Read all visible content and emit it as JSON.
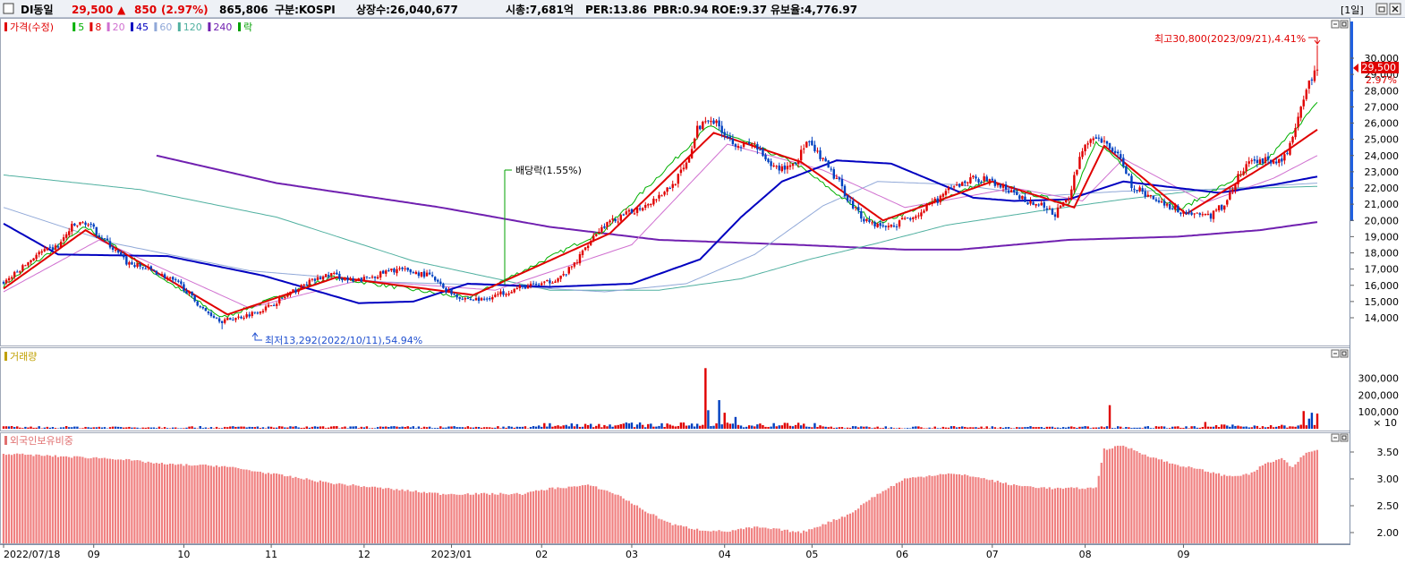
{
  "header": {
    "checkbox_icon": "checkbox-icon",
    "name": "DI동일",
    "price": "29,500",
    "change_arrow": "▲",
    "change": "850",
    "change_pct": "(2.97%)",
    "volume": "865,806",
    "market": "구분:KOSPI",
    "shares": "상장수:26,040,677",
    "market_cap": "시총:7,681억",
    "per": "PER:13.86",
    "pbr": "PBR:0.94",
    "roe": "ROE:9.37",
    "retention": "유보율:4,776.97",
    "period_button": "[1일]",
    "colors": {
      "up": "#e00000",
      "down": "#0040c0"
    }
  },
  "price_legend": {
    "items": [
      {
        "label": "가격(수정)",
        "color": "#e00000"
      },
      {
        "label": "5",
        "color": "#00b000"
      },
      {
        "label": "8",
        "color": "#e00000"
      },
      {
        "label": "20",
        "color": "#d070d0"
      },
      {
        "label": "45",
        "color": "#0000c0"
      },
      {
        "label": "60",
        "color": "#90a8d8"
      },
      {
        "label": "120",
        "color": "#50b0a0"
      },
      {
        "label": "240",
        "color": "#7020b0"
      },
      {
        "label": "락",
        "color": "#00a000"
      }
    ]
  },
  "volume_legend": {
    "label": "거래량",
    "color": "#c0a000"
  },
  "foreign_legend": {
    "label": "외국인보유비중",
    "color": "#e07070"
  },
  "annotations": {
    "high": "최고30,800(2023/09/21),4.41%",
    "low": "최저13,292(2022/10/11),54.94%",
    "dividend": "배당락(1.55%)",
    "current_price": "29,500",
    "current_pct": "2.97%"
  },
  "chart_data": [
    {
      "type": "candlestick",
      "title": "가격(수정)",
      "x_start": "2022/07/18",
      "x_end": "2023/09/21",
      "ylim": [
        13000,
        31500
      ],
      "yticks": [
        14000,
        15000,
        16000,
        17000,
        18000,
        19000,
        20000,
        21000,
        22000,
        23000,
        24000,
        25000,
        26000,
        27000,
        28000,
        29000,
        30000
      ],
      "ytick_labels": [
        "14,000",
        "15,000",
        "16,000",
        "17,000",
        "18,000",
        "19,000",
        "20,000",
        "21,000",
        "22,000",
        "23,000",
        "24,000",
        "25,000",
        "26,000",
        "27,000",
        "28,000",
        "29,000",
        "30,000"
      ],
      "close_keypoints": [
        [
          0,
          16200
        ],
        [
          5,
          16800
        ],
        [
          12,
          17900
        ],
        [
          20,
          18400
        ],
        [
          25,
          19600
        ],
        [
          30,
          19900
        ],
        [
          37,
          18800
        ],
        [
          45,
          17400
        ],
        [
          55,
          16900
        ],
        [
          65,
          16000
        ],
        [
          73,
          14500
        ],
        [
          80,
          13800
        ],
        [
          88,
          14100
        ],
        [
          96,
          14600
        ],
        [
          104,
          15400
        ],
        [
          112,
          16200
        ],
        [
          120,
          16700
        ],
        [
          128,
          16200
        ],
        [
          136,
          16600
        ],
        [
          144,
          17000
        ],
        [
          150,
          16800
        ],
        [
          156,
          16600
        ],
        [
          162,
          15700
        ],
        [
          168,
          15200
        ],
        [
          175,
          15100
        ],
        [
          182,
          15500
        ],
        [
          190,
          15900
        ],
        [
          198,
          16100
        ],
        [
          205,
          16600
        ],
        [
          210,
          17500
        ],
        [
          215,
          18900
        ],
        [
          220,
          19700
        ],
        [
          225,
          20100
        ],
        [
          232,
          20700
        ],
        [
          238,
          21300
        ],
        [
          245,
          22200
        ],
        [
          250,
          23400
        ],
        [
          254,
          25600
        ],
        [
          258,
          26400
        ],
        [
          262,
          25800
        ],
        [
          266,
          25000
        ],
        [
          270,
          24600
        ],
        [
          275,
          24700
        ],
        [
          280,
          23400
        ],
        [
          285,
          23200
        ],
        [
          290,
          23600
        ],
        [
          294,
          24800
        ],
        [
          298,
          24100
        ],
        [
          302,
          23200
        ],
        [
          306,
          22300
        ],
        [
          310,
          21100
        ],
        [
          315,
          20100
        ],
        [
          320,
          19700
        ],
        [
          325,
          19600
        ],
        [
          330,
          20100
        ],
        [
          335,
          20400
        ],
        [
          340,
          21000
        ],
        [
          345,
          21700
        ],
        [
          350,
          22200
        ],
        [
          355,
          22600
        ],
        [
          360,
          22500
        ],
        [
          365,
          22100
        ],
        [
          370,
          21600
        ],
        [
          375,
          21200
        ],
        [
          380,
          20900
        ],
        [
          385,
          20400
        ],
        [
          390,
          21400
        ],
        [
          395,
          24500
        ],
        [
          400,
          25000
        ],
        [
          405,
          24600
        ],
        [
          410,
          23500
        ],
        [
          413,
          22200
        ],
        [
          417,
          21700
        ],
        [
          422,
          21300
        ],
        [
          427,
          20900
        ],
        [
          432,
          20500
        ],
        [
          437,
          20400
        ],
        [
          442,
          20300
        ],
        [
          447,
          21000
        ],
        [
          452,
          22700
        ],
        [
          457,
          23700
        ],
        [
          462,
          23700
        ],
        [
          466,
          23500
        ],
        [
          470,
          24200
        ],
        [
          474,
          26200
        ],
        [
          478,
          28400
        ],
        [
          481,
          29500
        ]
      ],
      "high": {
        "value": 30800,
        "date": "2023/09/21"
      },
      "low": {
        "value": 13292,
        "date": "2022/10/11"
      }
    },
    {
      "type": "line",
      "title": "이동평균",
      "series": [
        {
          "name": "5",
          "keypoints": [
            [
              0,
              16000
            ],
            [
              30,
              19600
            ],
            [
              80,
              14000
            ],
            [
              120,
              16500
            ],
            [
              170,
              15200
            ],
            [
              220,
              19400
            ],
            [
              258,
              25800
            ],
            [
              290,
              23500
            ],
            [
              320,
              19800
            ],
            [
              360,
              22400
            ],
            [
              390,
              21000
            ],
            [
              400,
              24800
            ],
            [
              430,
              20600
            ],
            [
              462,
              23600
            ],
            [
              481,
              27200
            ]
          ]
        },
        {
          "name": "8",
          "keypoints": [
            [
              0,
              15800
            ],
            [
              30,
              19400
            ],
            [
              82,
              14200
            ],
            [
              122,
              16500
            ],
            [
              172,
              15400
            ],
            [
              222,
              19200
            ],
            [
              260,
              25400
            ],
            [
              292,
              23600
            ],
            [
              322,
              20000
            ],
            [
              362,
              22400
            ],
            [
              392,
              20800
            ],
            [
              403,
              24600
            ],
            [
              433,
              20400
            ],
            [
              463,
              23500
            ],
            [
              481,
              25600
            ]
          ]
        },
        {
          "name": "20",
          "keypoints": [
            [
              0,
              15600
            ],
            [
              35,
              18800
            ],
            [
              90,
              14600
            ],
            [
              130,
              16300
            ],
            [
              180,
              15700
            ],
            [
              230,
              18500
            ],
            [
              265,
              24700
            ],
            [
              300,
              23100
            ],
            [
              330,
              20800
            ],
            [
              370,
              22000
            ],
            [
              395,
              21200
            ],
            [
              410,
              23800
            ],
            [
              440,
              21100
            ],
            [
              465,
              22600
            ],
            [
              481,
              24000
            ]
          ]
        },
        {
          "name": "45",
          "keypoints": [
            [
              0,
              19800
            ],
            [
              20,
              17900
            ],
            [
              60,
              17800
            ],
            [
              95,
              16600
            ],
            [
              130,
              14900
            ],
            [
              150,
              15000
            ],
            [
              170,
              16100
            ],
            [
              200,
              15900
            ],
            [
              230,
              16100
            ],
            [
              255,
              17600
            ],
            [
              270,
              20200
            ],
            [
              285,
              22400
            ],
            [
              305,
              23700
            ],
            [
              325,
              23500
            ],
            [
              355,
              21400
            ],
            [
              370,
              21200
            ],
            [
              390,
              21300
            ],
            [
              410,
              22400
            ],
            [
              430,
              22000
            ],
            [
              445,
              21700
            ],
            [
              465,
              22200
            ],
            [
              481,
              22700
            ]
          ]
        },
        {
          "name": "60",
          "keypoints": [
            [
              0,
              20800
            ],
            [
              40,
              18600
            ],
            [
              90,
              16900
            ],
            [
              140,
              16200
            ],
            [
              180,
              16000
            ],
            [
              220,
              15600
            ],
            [
              250,
              16100
            ],
            [
              275,
              17900
            ],
            [
              300,
              20900
            ],
            [
              320,
              22400
            ],
            [
              350,
              22200
            ],
            [
              380,
              21500
            ],
            [
              410,
              21800
            ],
            [
              440,
              21900
            ],
            [
              481,
              22300
            ]
          ]
        },
        {
          "name": "120",
          "keypoints": [
            [
              0,
              22800
            ],
            [
              50,
              21900
            ],
            [
              100,
              20200
            ],
            [
              150,
              17500
            ],
            [
              200,
              15700
            ],
            [
              240,
              15700
            ],
            [
              270,
              16400
            ],
            [
              295,
              17600
            ],
            [
              320,
              18600
            ],
            [
              345,
              19700
            ],
            [
              380,
              20600
            ],
            [
              410,
              21300
            ],
            [
              440,
              21900
            ],
            [
              481,
              22100
            ]
          ]
        },
        {
          "name": "240",
          "keypoints": [
            [
              56,
              24000
            ],
            [
              100,
              22300
            ],
            [
              160,
              20800
            ],
            [
              200,
              19600
            ],
            [
              240,
              18800
            ],
            [
              290,
              18500
            ],
            [
              330,
              18200
            ],
            [
              350,
              18200
            ],
            [
              390,
              18800
            ],
            [
              430,
              19000
            ],
            [
              460,
              19400
            ],
            [
              481,
              19900
            ]
          ]
        }
      ]
    },
    {
      "type": "bar",
      "title": "거래량",
      "ylim": [
        0,
        420000
      ],
      "yticks": [
        100000,
        200000,
        300000
      ],
      "ytick_labels": [
        "100,000",
        "200,000",
        "300,000"
      ],
      "unit": "× 10",
      "spikes": [
        [
          257,
          360000
        ],
        [
          262,
          170000
        ],
        [
          258,
          110000
        ],
        [
          264,
          95000
        ],
        [
          268,
          70000
        ],
        [
          405,
          140000
        ],
        [
          440,
          40000
        ],
        [
          476,
          105000
        ],
        [
          479,
          95000
        ],
        [
          481,
          90000
        ],
        [
          478,
          60000
        ]
      ]
    },
    {
      "type": "bar",
      "title": "외국인보유비중",
      "ylim": [
        1.8,
        3.75
      ],
      "yticks": [
        2.0,
        2.5,
        3.0,
        3.5
      ],
      "ytick_labels": [
        "2.00",
        "2.50",
        "3.00",
        "3.50"
      ],
      "keypoints": [
        [
          0,
          3.47
        ],
        [
          20,
          3.42
        ],
        [
          40,
          3.38
        ],
        [
          60,
          3.27
        ],
        [
          80,
          3.24
        ],
        [
          100,
          3.08
        ],
        [
          120,
          2.92
        ],
        [
          140,
          2.82
        ],
        [
          160,
          2.72
        ],
        [
          180,
          2.72
        ],
        [
          190,
          2.72
        ],
        [
          200,
          2.82
        ],
        [
          215,
          2.88
        ],
        [
          225,
          2.7
        ],
        [
          235,
          2.4
        ],
        [
          245,
          2.15
        ],
        [
          255,
          2.05
        ],
        [
          265,
          2.02
        ],
        [
          275,
          2.1
        ],
        [
          285,
          2.05
        ],
        [
          292,
          2.0
        ],
        [
          300,
          2.15
        ],
        [
          310,
          2.35
        ],
        [
          318,
          2.65
        ],
        [
          330,
          3.0
        ],
        [
          345,
          3.1
        ],
        [
          355,
          3.05
        ],
        [
          370,
          2.88
        ],
        [
          385,
          2.82
        ],
        [
          400,
          2.83
        ],
        [
          403,
          3.55
        ],
        [
          410,
          3.62
        ],
        [
          418,
          3.45
        ],
        [
          428,
          3.28
        ],
        [
          440,
          3.15
        ],
        [
          448,
          3.05
        ],
        [
          456,
          3.08
        ],
        [
          462,
          3.28
        ],
        [
          468,
          3.38
        ],
        [
          472,
          3.2
        ],
        [
          476,
          3.45
        ],
        [
          481,
          3.55
        ]
      ]
    }
  ],
  "x_axis": {
    "labels": [
      {
        "idx": 0,
        "text": "2022/07/18"
      },
      {
        "idx": 33,
        "text": "09"
      },
      {
        "idx": 66,
        "text": "10"
      },
      {
        "idx": 98,
        "text": "11"
      },
      {
        "idx": 132,
        "text": "12"
      },
      {
        "idx": 164,
        "text": "2023/01"
      },
      {
        "idx": 197,
        "text": "02"
      },
      {
        "idx": 230,
        "text": "03"
      },
      {
        "idx": 264,
        "text": "04"
      },
      {
        "idx": 296,
        "text": "05"
      },
      {
        "idx": 329,
        "text": "06"
      },
      {
        "idx": 362,
        "text": "07"
      },
      {
        "idx": 396,
        "text": "08"
      },
      {
        "idx": 432,
        "text": "09"
      }
    ]
  },
  "controls": {
    "minimize_icon": "minimize-icon",
    "restore_icon": "restore-icon",
    "close_icon": "close-icon"
  }
}
